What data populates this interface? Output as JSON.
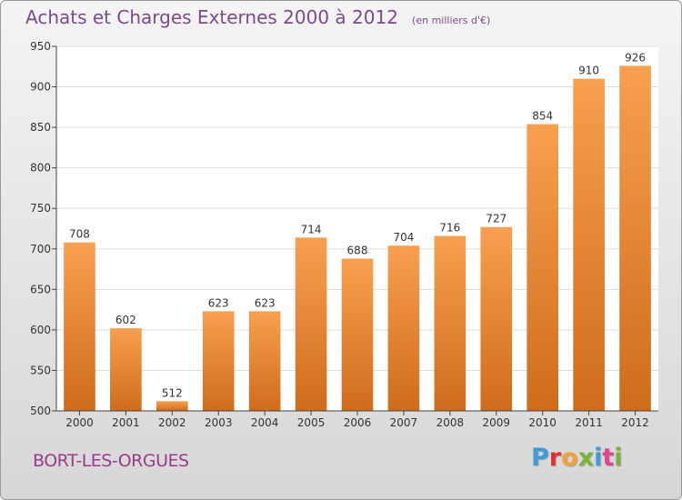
{
  "title": {
    "main": "Achats et Charges Externes 2000 à 2012",
    "unit": "(en milliers d'€)"
  },
  "commune": "BORT-LES-ORGUES",
  "logo": {
    "letters": [
      "P",
      "r",
      "o",
      "x",
      "i",
      "t",
      "i"
    ],
    "colors": [
      "#3f9ad6",
      "#e2312d",
      "#f0a13c",
      "#7bb239",
      "#3f9ad6",
      "#e04393",
      "#7bb239"
    ]
  },
  "colors": {
    "bar_top": "#f7a04f",
    "bar_bottom": "#cf6c1b",
    "title": "#7b4a8c",
    "commune": "#9b3b8a"
  },
  "chart_data": {
    "type": "bar",
    "categories": [
      "2000",
      "2001",
      "2002",
      "2003",
      "2004",
      "2005",
      "2006",
      "2007",
      "2008",
      "2009",
      "2010",
      "2011",
      "2012"
    ],
    "values": [
      708,
      602,
      512,
      623,
      623,
      714,
      688,
      704,
      716,
      727,
      854,
      910,
      926
    ],
    "title": "Achats et Charges Externes 2000 à 2012",
    "subtitle": "(en milliers d'€)",
    "xlabel": "",
    "ylabel": "",
    "ylim": [
      500,
      950
    ],
    "yticks": [
      500,
      550,
      600,
      650,
      700,
      750,
      800,
      850,
      900,
      950
    ],
    "grid": true
  }
}
